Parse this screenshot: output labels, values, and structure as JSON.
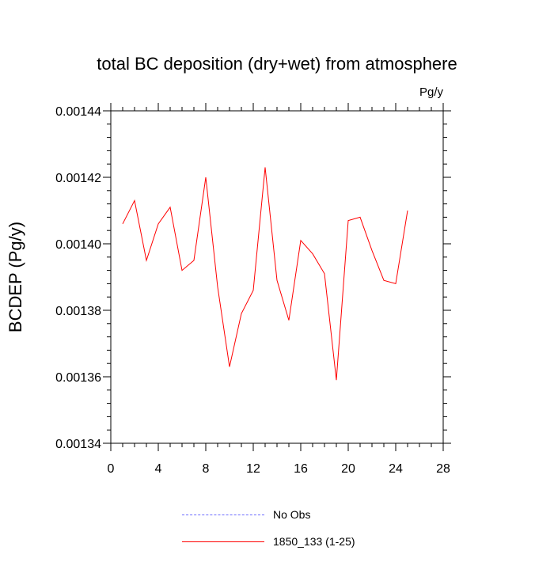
{
  "chart_data": {
    "type": "line",
    "title": "total BC deposition (dry+wet) from atmosphere",
    "units_label": "Pg/y",
    "ylabel": "BCDEP  (Pg/y)",
    "xlabel": "",
    "xlim": [
      0,
      28
    ],
    "ylim": [
      0.00134,
      0.00144
    ],
    "x_ticks": [
      "0",
      "4",
      "8",
      "12",
      "16",
      "20",
      "24",
      "28"
    ],
    "y_ticks": [
      "0.00134",
      "0.00136",
      "0.00138",
      "0.00140",
      "0.00142",
      "0.00144"
    ],
    "x": [
      1,
      2,
      3,
      4,
      5,
      6,
      7,
      8,
      9,
      10,
      11,
      12,
      13,
      14,
      15,
      16,
      17,
      18,
      19,
      20,
      21,
      22,
      23,
      24,
      25
    ],
    "series": [
      {
        "name": "1850_133 (1-25)",
        "color": "#ff0000",
        "values": [
          0.001406,
          0.001413,
          0.001395,
          0.001406,
          0.001411,
          0.001392,
          0.001395,
          0.00142,
          0.001387,
          0.001363,
          0.001379,
          0.001386,
          0.001423,
          0.001389,
          0.001377,
          0.001401,
          0.001397,
          0.001391,
          0.001359,
          0.001407,
          0.001408,
          0.001398,
          0.001389,
          0.001388,
          0.00141
        ]
      }
    ],
    "grid": false
  },
  "legend": {
    "items": [
      {
        "label": "No Obs",
        "style": "dashed",
        "color": "#6b6bff"
      },
      {
        "label": "1850_133 (1-25)",
        "style": "solid",
        "color": "#ff0000"
      }
    ]
  }
}
